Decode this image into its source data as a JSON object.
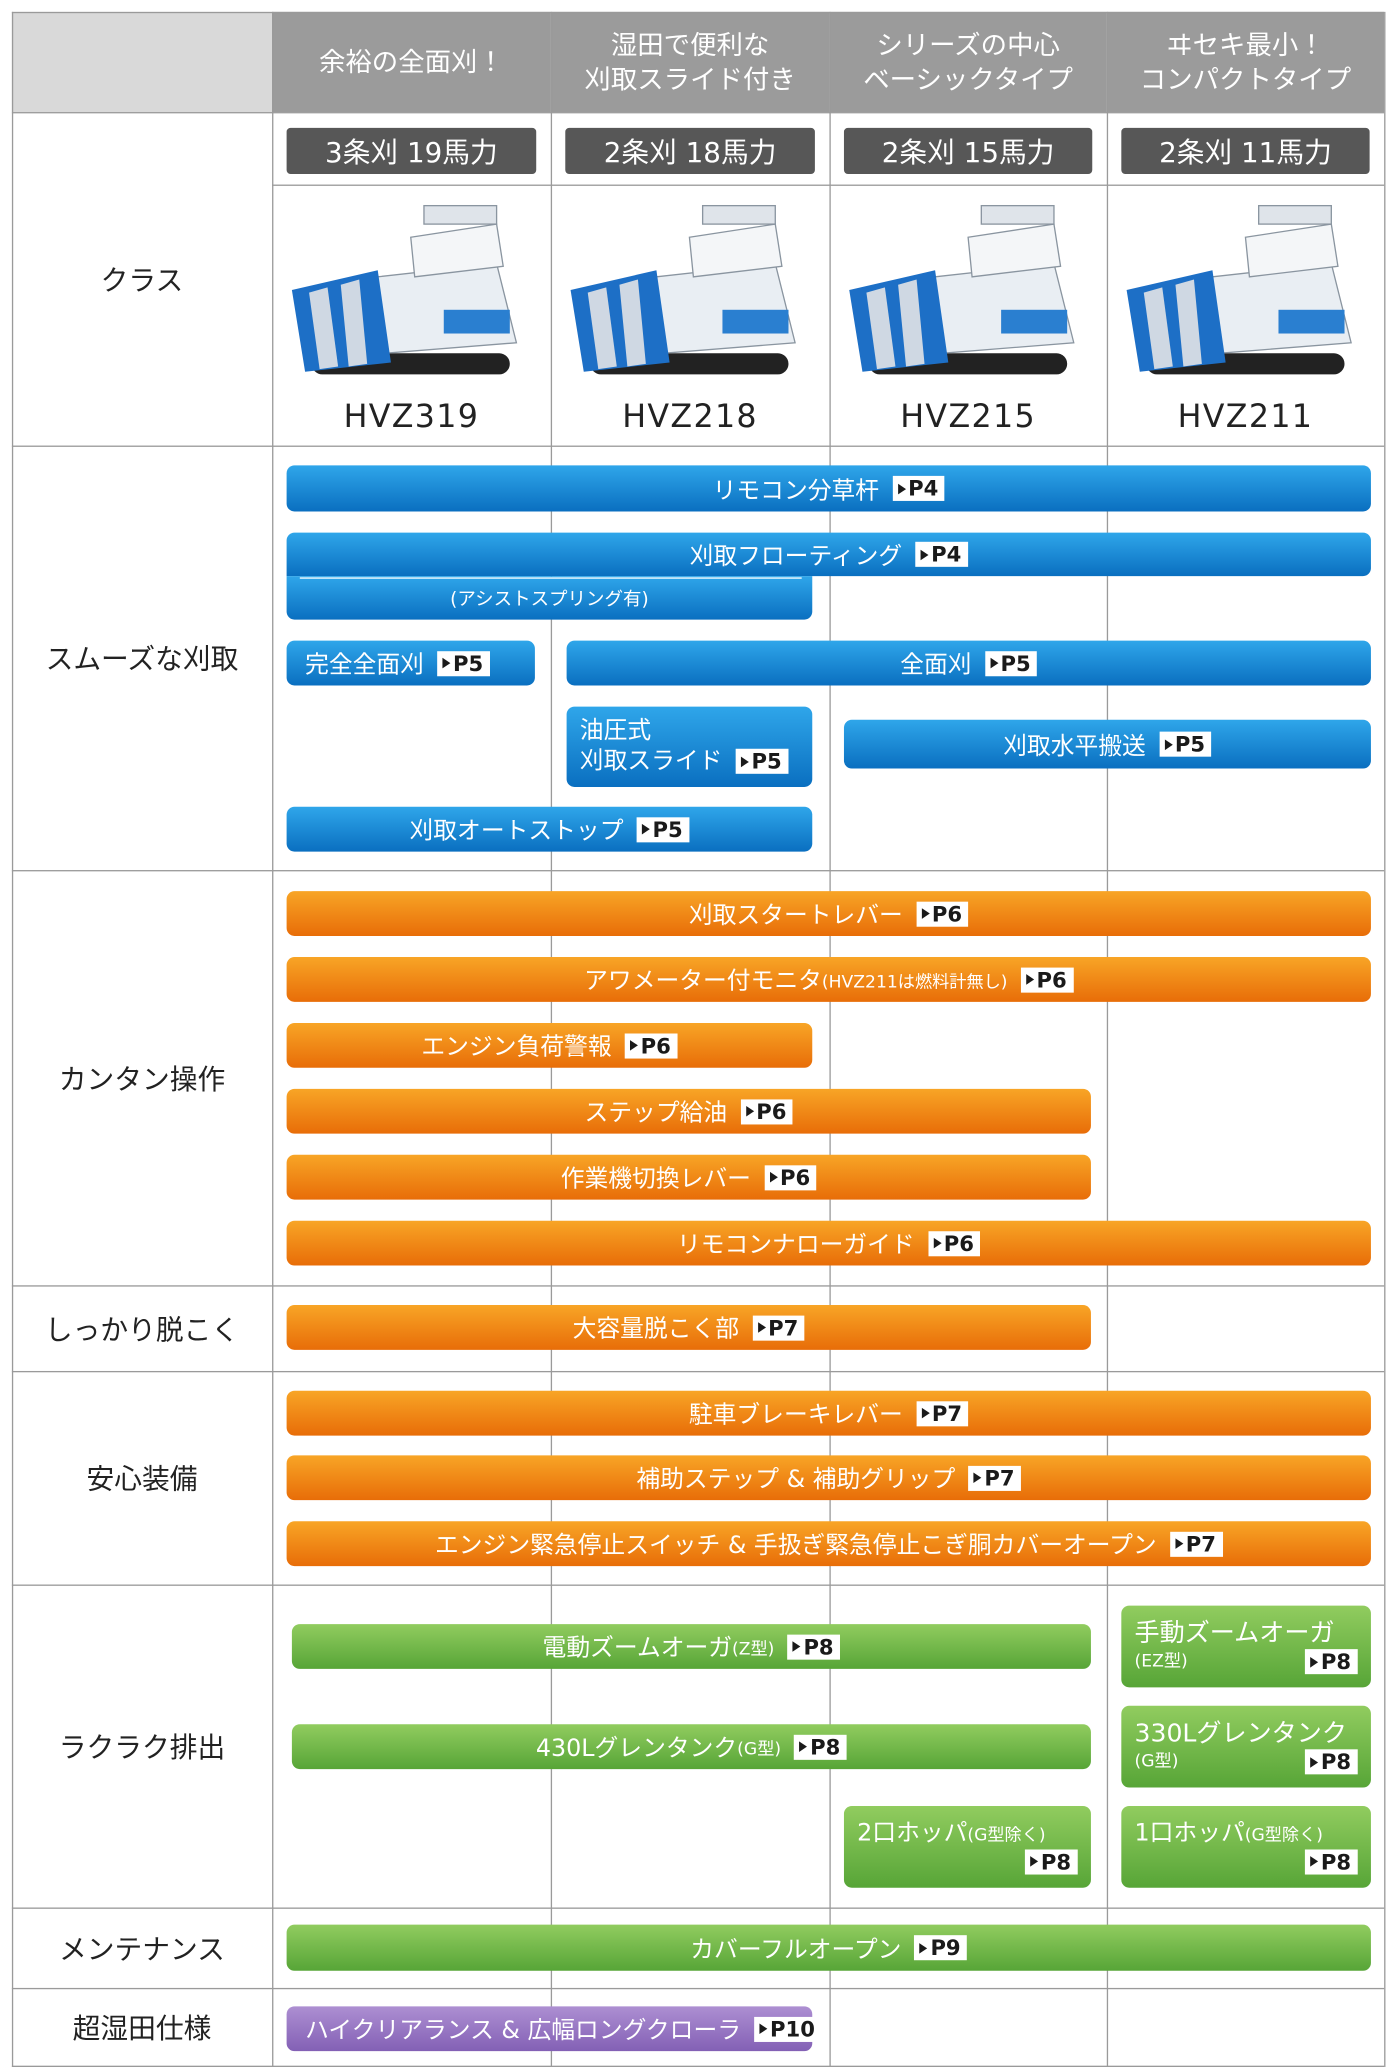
{
  "header": {
    "columns": [
      [
        "余裕の全面刈！"
      ],
      [
        "湿田で便利な",
        "刈取スライド付き"
      ],
      [
        "シリーズの中心",
        "ベーシックタイプ"
      ],
      [
        "ヰセキ最小！",
        "コンパクトタイプ"
      ]
    ]
  },
  "class_row": {
    "label": "クラス",
    "models": [
      {
        "power": "3条刈 19馬力",
        "name": "HVZ319"
      },
      {
        "power": "2条刈 18馬力",
        "name": "HVZ218"
      },
      {
        "power": "2条刈 15馬力",
        "name": "HVZ215"
      },
      {
        "power": "2条刈 11馬力",
        "name": "HVZ211"
      }
    ]
  },
  "rows": [
    {
      "label": "スムーズな刈取",
      "bars": [
        {
          "text": "リモコン分草杆",
          "ref": "P4"
        },
        {
          "text": "刈取フローティング",
          "ref": "P4"
        },
        {
          "text": "(アシストスプリング有)"
        },
        {
          "text": "完全全面刈",
          "ref": "P5"
        },
        {
          "text": "全面刈",
          "ref": "P5"
        },
        {
          "text": "油圧式",
          "text2": "刈取スライド",
          "ref": "P5"
        },
        {
          "text": "刈取水平搬送",
          "ref": "P5"
        },
        {
          "text": "刈取オートストップ",
          "ref": "P5"
        }
      ]
    },
    {
      "label": "カンタン操作",
      "bars": [
        {
          "text": "刈取スタートレバー",
          "ref": "P6"
        },
        {
          "text": "アワメーター付モニタ",
          "sub": "(HVZ211は燃料計無し)",
          "ref": "P6"
        },
        {
          "text": "エンジン負荷警報",
          "ref": "P6"
        },
        {
          "text": "ステップ給油",
          "ref": "P6"
        },
        {
          "text": "作業機切換レバー",
          "ref": "P6"
        },
        {
          "text": "リモコンナローガイド",
          "ref": "P6"
        }
      ]
    },
    {
      "label": "しっかり脱こく",
      "bars": [
        {
          "text": "大容量脱こく部",
          "ref": "P7"
        }
      ]
    },
    {
      "label": "安心装備",
      "bars": [
        {
          "text": "駐車ブレーキレバー",
          "ref": "P7"
        },
        {
          "text": "補助ステップ & 補助グリップ",
          "ref": "P7"
        },
        {
          "text": "エンジン緊急停止スイッチ & 手扱ぎ緊急停止こぎ胴カバーオープン",
          "ref": "P7"
        }
      ]
    },
    {
      "label": "ラクラク排出",
      "bars": [
        {
          "text": "電動ズームオーガ",
          "sub": "(Z型)",
          "ref": "P8"
        },
        {
          "text": "手動ズームオーガ",
          "sub": "(EZ型)",
          "ref": "P8"
        },
        {
          "text": "430Lグレンタンク",
          "sub": "(G型)",
          "ref": "P8"
        },
        {
          "text": "330Lグレンタンク",
          "sub": "(G型)",
          "ref": "P8"
        },
        {
          "text": "2口ホッパ",
          "sub": "(G型除く)",
          "ref": "P8"
        },
        {
          "text": "1口ホッパ",
          "sub": "(G型除く)",
          "ref": "P8"
        }
      ]
    },
    {
      "label": "メンテナンス",
      "bars": [
        {
          "text": "カバーフルオープン",
          "ref": "P9"
        }
      ]
    },
    {
      "label": "超湿田仕様",
      "bars": [
        {
          "text": "ハイクリアランス & 広幅ロングクローラ",
          "ref": "P10"
        }
      ]
    }
  ]
}
